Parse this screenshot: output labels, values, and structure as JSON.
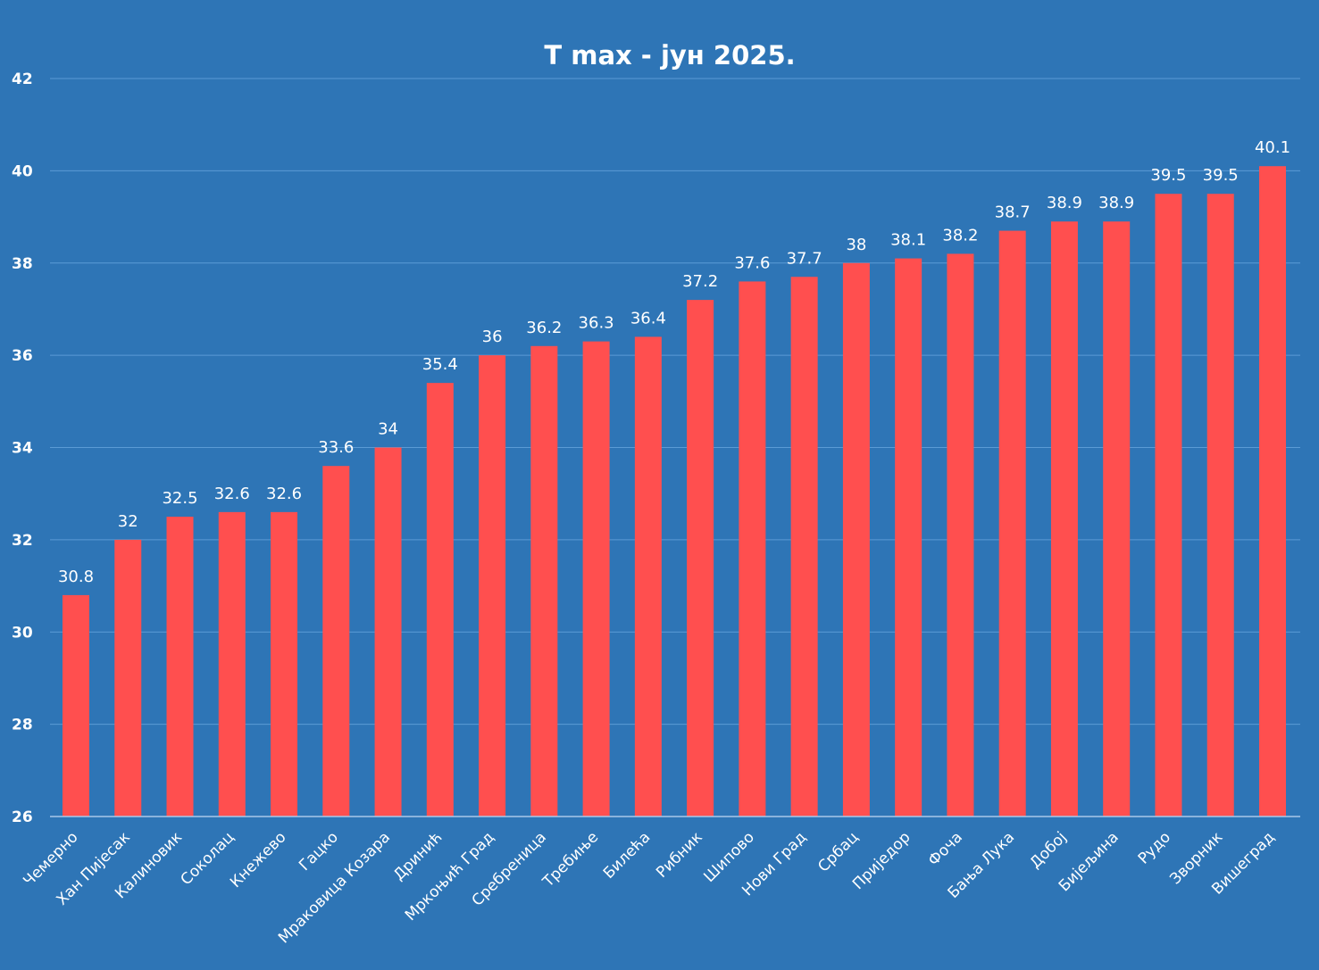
{
  "colors": {
    "background": "#2e75b6",
    "bar": "#ff4f4f",
    "gridline": "#5b9bd5",
    "text": "#ffffff"
  },
  "chart_data": {
    "type": "bar",
    "title": "T max - јун 2025.",
    "xlabel": "",
    "ylabel": "",
    "ylim": [
      26,
      42
    ],
    "yticks": [
      26,
      28,
      30,
      32,
      34,
      36,
      38,
      40,
      42
    ],
    "grid": true,
    "legend": "none",
    "categories": [
      "Чемерно",
      "Хан Пијесак",
      "Калиновик",
      "Соколац",
      "Кнежево",
      "Гацко",
      "Мраковица Козара",
      "Дринић",
      "Мркоњић Град",
      "Сребреница",
      "Требиње",
      "Билећа",
      "Рибник",
      "Шипово",
      "Нови Град",
      "Србац",
      "Приједор",
      "Фоча",
      "Бања Лука",
      "Добој",
      "Бијељина",
      "Рудо",
      "Зворник",
      "Вишеград"
    ],
    "values": [
      30.8,
      32,
      32.5,
      32.6,
      32.6,
      33.6,
      34,
      35.4,
      36,
      36.2,
      36.3,
      36.4,
      37.2,
      37.6,
      37.7,
      38,
      38.1,
      38.2,
      38.7,
      38.9,
      38.9,
      39.5,
      39.5,
      40.1
    ]
  }
}
